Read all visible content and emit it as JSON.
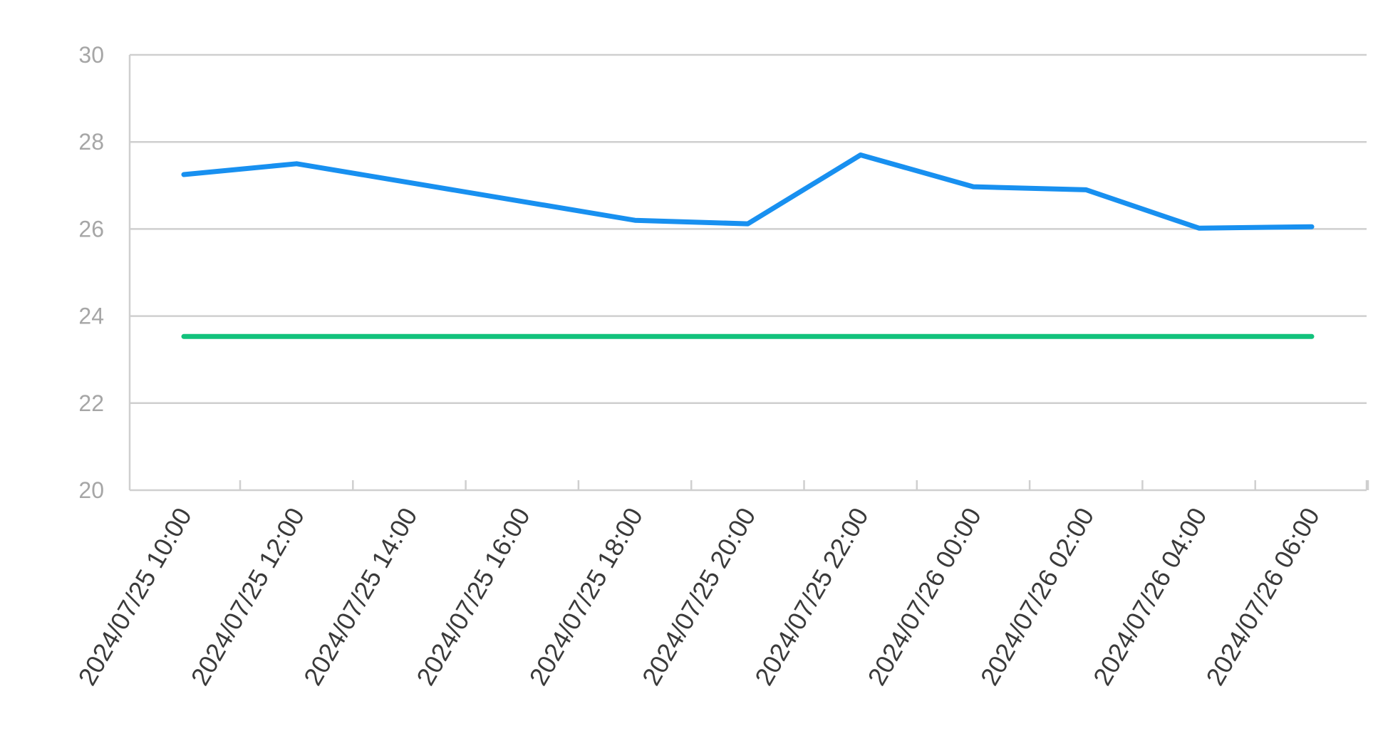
{
  "chart_data": {
    "type": "line",
    "title": "",
    "xlabel": "",
    "ylabel": "",
    "ylim": [
      20,
      30
    ],
    "yticks": [
      "20",
      "22",
      "24",
      "26",
      "28",
      "30"
    ],
    "x_tick_labels": [
      "2024/07/25 10:00",
      "2024/07/25 12:00",
      "2024/07/25 14:00",
      "2024/07/25 16:00",
      "2024/07/25 18:00",
      "2024/07/25 20:00",
      "2024/07/25 22:00",
      "2024/07/26 00:00",
      "2024/07/26 02:00",
      "2024/07/26 04:00",
      "2024/07/26 06:00"
    ],
    "grid": true,
    "legend": "none",
    "series": [
      {
        "color": "#1890f0",
        "points": [
          {
            "x": "2024/07/25 10:00",
            "y": 27.25
          },
          {
            "x": "2024/07/25 12:00",
            "y": 27.5
          },
          {
            "x": "2024/07/25 18:00",
            "y": 26.2
          },
          {
            "x": "2024/07/25 20:00",
            "y": 26.12
          },
          {
            "x": "2024/07/25 22:00",
            "y": 27.7
          },
          {
            "x": "2024/07/26 00:00",
            "y": 26.97
          },
          {
            "x": "2024/07/26 02:00",
            "y": 26.9
          },
          {
            "x": "2024/07/26 04:00",
            "y": 26.02
          },
          {
            "x": "2024/07/26 06:00",
            "y": 26.05
          }
        ]
      },
      {
        "color": "#12c27c",
        "points": [
          {
            "x": "2024/07/25 10:00",
            "y": 23.53
          },
          {
            "x": "2024/07/26 06:00",
            "y": 23.53
          }
        ]
      }
    ]
  }
}
